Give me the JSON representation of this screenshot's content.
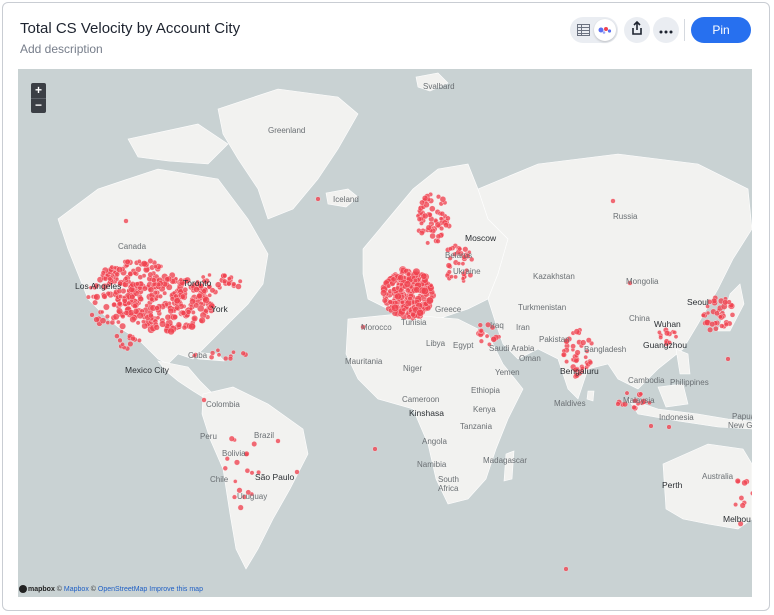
{
  "header": {
    "title": "Total CS Velocity by Account City",
    "description": "Add description",
    "pin_label": "Pin"
  },
  "toolbar": {
    "table_view_icon": "table-icon",
    "map_view_icon": "map-icon",
    "share_icon": "share-icon",
    "more_icon": "more-icon"
  },
  "map": {
    "zoom_in_label": "+",
    "zoom_out_label": "−",
    "marker_color": "#f0424f",
    "attribution": {
      "mapbox_logo": "mapbox",
      "copyright1": "©",
      "mapbox_link": "Mapbox",
      "copyright2": "©",
      "osm_link": "OpenStreetMap",
      "improve_link": "Improve this map"
    },
    "labels": {
      "svalbard": "Svalbard",
      "greenland": "Greenland",
      "iceland": "Iceland",
      "russia": "Russia",
      "moscow": "Moscow",
      "canada": "Canada",
      "kazakhstan": "Kazakhstan",
      "mongolia": "Mongolia",
      "ukraine": "Ukraine",
      "belarus": "Belarus",
      "turkmenistan": "Turkmenistan",
      "seoul": "Seoul",
      "china": "China",
      "wuhan": "Wuhan",
      "los_angeles": "Los Angeles",
      "new_york": "York",
      "toronto": "Toronto",
      "morocco": "Morocco",
      "tunisia": "Tunisia",
      "greece": "Greece",
      "iraq": "Iraq",
      "iran": "Iran",
      "pakistan": "Pakistan",
      "guangzhou": "Guangzhou",
      "bangladesh": "Bangladesh",
      "cuba": "Cuba",
      "libya": "Libya",
      "egypt": "Egypt",
      "saudi_arabia": "Saudi Arabia",
      "oman": "Oman",
      "mexico_city": "Mexico City",
      "mauritania": "Mauritania",
      "niger": "Niger",
      "yemen": "Yemen",
      "bengaluru": "Bengaluru",
      "cambodia": "Cambodia",
      "philippines": "Philippines",
      "ethiopia": "Ethiopia",
      "colombia": "Colombia",
      "cameroon": "Cameroon",
      "maldives": "Maldives",
      "malaysia": "Malaysia",
      "kinshasa": "Kinshasa",
      "kenya": "Kenya",
      "indonesia": "Indonesia",
      "papua": "Papua",
      "new_guinea": "New Guine",
      "peru": "Peru",
      "brazil": "Brazil",
      "tanzania": "Tanzania",
      "angola": "Angola",
      "bolivia": "Bolivia",
      "madagascar": "Madagascar",
      "namibia": "Namibia",
      "australia": "Australia",
      "chile": "Chile",
      "sao_paulo": "São Paulo",
      "south_africa_1": "South",
      "south_africa_2": "Africa",
      "uruguay": "Uruguay",
      "perth": "Perth",
      "melbourne": "Melbou"
    }
  }
}
